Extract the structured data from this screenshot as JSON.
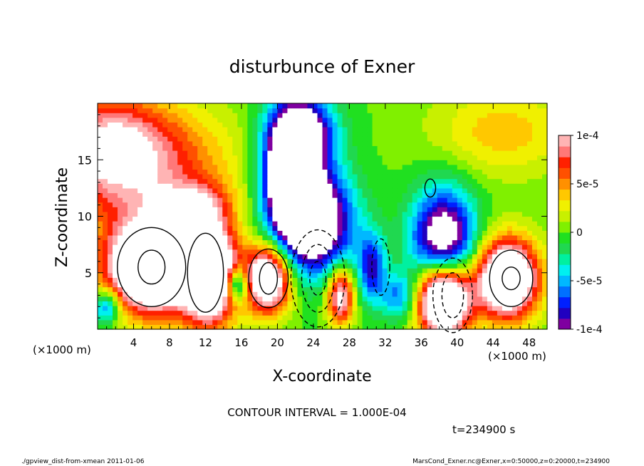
{
  "chart_data": {
    "type": "heatmap",
    "title": "disturbunce of Exner",
    "xlabel": "X-coordinate",
    "ylabel": "Z-coordinate",
    "x_unit_left": "(×1000 m)",
    "x_unit_right": "(×1000 m)",
    "xlim": [
      0,
      50
    ],
    "ylim": [
      0,
      20
    ],
    "x_ticks": [
      4,
      8,
      12,
      16,
      20,
      24,
      28,
      32,
      36,
      40,
      44,
      48
    ],
    "y_ticks": [
      5,
      10,
      15
    ],
    "colorbar": {
      "min": -0.0001,
      "max": 0.0001,
      "ticks": [
        {
          "value": 0.0001,
          "label": "1e-4"
        },
        {
          "value": 5e-05,
          "label": "5e-5"
        },
        {
          "value": 0,
          "label": "0"
        },
        {
          "value": -5e-05,
          "label": "-5e-5"
        },
        {
          "value": -0.0001,
          "label": "-1e-4"
        }
      ],
      "colors": [
        "#7f00a0",
        "#2000c0",
        "#0020ff",
        "#0070ff",
        "#00b8ff",
        "#00f0f0",
        "#00f0a0",
        "#20d850",
        "#20e020",
        "#80f000",
        "#c8f000",
        "#f0f000",
        "#ffc800",
        "#ff9000",
        "#ff5000",
        "#ff2000",
        "#ff7878",
        "#ffb4b4"
      ]
    },
    "contour_interval_label": "CONTOUR INTERVAL = 1.000E-04",
    "time_label": "t=234900 s",
    "blobs": [
      {
        "x": 4.0,
        "z": 14.5,
        "rx": 10.0,
        "rz": 5.5,
        "v": 9e-05
      },
      {
        "x": 10.5,
        "z": 11.0,
        "rx": 4.0,
        "rz": 2.0,
        "v": 6e-05
      },
      {
        "x": 1.0,
        "z": 17.0,
        "rx": 6.0,
        "rz": 4.0,
        "v": 5e-05
      },
      {
        "x": 45.0,
        "z": 17.5,
        "rx": 8.0,
        "rz": 4.0,
        "v": 4e-05
      },
      {
        "x": 21.5,
        "z": 13.5,
        "rx": 3.0,
        "rz": 5.5,
        "v": -0.00018
      },
      {
        "x": 23.0,
        "z": 17.5,
        "rx": 3.5,
        "rz": 3.0,
        "v": -0.0001
      },
      {
        "x": 24.5,
        "z": 9.5,
        "rx": 4.0,
        "rz": 4.5,
        "v": -0.00014
      },
      {
        "x": 30.5,
        "z": 5.5,
        "rx": 1.5,
        "rz": 3.0,
        "v": -8e-05
      },
      {
        "x": 38.5,
        "z": 7.0,
        "rx": 3.5,
        "rz": 5.0,
        "v": -0.00016
      },
      {
        "x": 6.0,
        "z": 5.5,
        "rx": 5.0,
        "rz": 4.0,
        "v": 0.0002
      },
      {
        "x": 12.5,
        "z": 5.0,
        "rx": 3.0,
        "rz": 4.5,
        "v": 0.00018
      },
      {
        "x": 19.0,
        "z": 4.5,
        "rx": 2.5,
        "rz": 3.0,
        "v": 0.00016
      },
      {
        "x": 27.0,
        "z": 3.0,
        "rx": 1.5,
        "rz": 2.5,
        "v": 0.00012
      },
      {
        "x": 38.5,
        "z": 3.0,
        "rx": 3.0,
        "rz": 3.5,
        "v": 0.00025
      },
      {
        "x": 45.5,
        "z": 4.5,
        "rx": 3.5,
        "rz": 3.5,
        "v": 0.00018
      },
      {
        "x": 1.0,
        "z": 2.0,
        "rx": 1.5,
        "rz": 1.5,
        "v": -8e-05
      },
      {
        "x": 15.5,
        "z": 4.0,
        "rx": 1.2,
        "rz": 1.5,
        "v": -0.0001
      },
      {
        "x": 33.5,
        "z": 3.0,
        "rx": 2.0,
        "rz": 2.0,
        "v": -6e-05
      }
    ],
    "contours": {
      "solid": [
        {
          "x": 6.0,
          "z": 5.5,
          "rx": 3.8,
          "rz": 3.5
        },
        {
          "x": 6.0,
          "z": 5.5,
          "rx": 1.5,
          "rz": 1.5
        },
        {
          "x": 12.0,
          "z": 5.0,
          "rx": 2.0,
          "rz": 3.5
        },
        {
          "x": 19.0,
          "z": 4.5,
          "rx": 2.2,
          "rz": 2.6
        },
        {
          "x": 19.0,
          "z": 4.5,
          "rx": 1.0,
          "rz": 1.4
        },
        {
          "x": 46.0,
          "z": 4.5,
          "rx": 2.4,
          "rz": 2.5
        },
        {
          "x": 46.0,
          "z": 4.5,
          "rx": 1.0,
          "rz": 1.0
        },
        {
          "x": 37.0,
          "z": 12.5,
          "rx": 0.6,
          "rz": 0.8
        }
      ],
      "dashed": [
        {
          "x": 24.5,
          "z": 4.5,
          "rx": 3.0,
          "rz": 4.3
        },
        {
          "x": 24.5,
          "z": 4.5,
          "rx": 1.8,
          "rz": 3.0
        },
        {
          "x": 24.5,
          "z": 4.5,
          "rx": 0.9,
          "rz": 1.5
        },
        {
          "x": 39.5,
          "z": 3.0,
          "rx": 2.2,
          "rz": 3.3
        },
        {
          "x": 39.5,
          "z": 3.0,
          "rx": 1.2,
          "rz": 2.0
        },
        {
          "x": 31.5,
          "z": 5.5,
          "rx": 1.0,
          "rz": 2.5
        }
      ]
    }
  },
  "footer": {
    "left": "./gpview_dist-from-xmean   2011-01-06",
    "right": "MarsCond_Exner.nc@Exner,x=0:50000,z=0:20000,t=234900"
  }
}
